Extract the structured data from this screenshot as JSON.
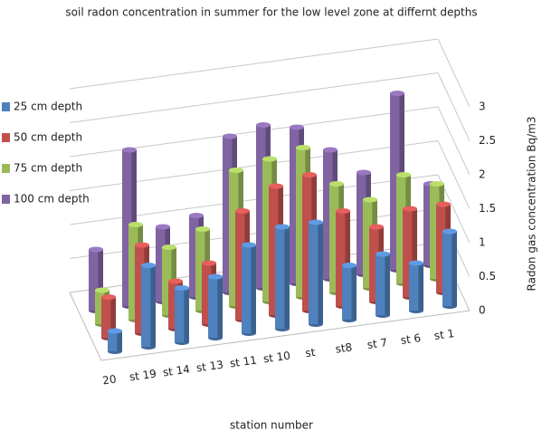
{
  "chart_data": {
    "type": "bar3d",
    "title": "soil radon concentration in summer for the low level zone at differnt depths",
    "x_label": "station number",
    "y_label": "Radon gas concentration Bq/m3",
    "categories": [
      "20",
      "st 19",
      "st 14",
      "st 13",
      "st 11",
      "st 10",
      "st",
      "st8",
      "st 7",
      "st 6",
      "st 1"
    ],
    "series": [
      {
        "name": "25 cm depth",
        "color": "#4f81bd",
        "values": [
          0.3,
          1.2,
          0.8,
          0.9,
          1.3,
          1.5,
          1.5,
          0.8,
          0.9,
          0.7,
          1.1
        ]
      },
      {
        "name": "50 cm depth",
        "color": "#c0504d",
        "values": [
          0.6,
          1.3,
          0.7,
          0.9,
          1.6,
          1.9,
          2.0,
          1.4,
          1.1,
          1.3,
          1.3
        ]
      },
      {
        "name": "75 cm depth",
        "color": "#9bbb59",
        "values": [
          0.5,
          1.4,
          1.0,
          1.2,
          2.0,
          2.1,
          2.2,
          1.6,
          1.3,
          1.6,
          1.4
        ]
      },
      {
        "name": "100 cm depth",
        "color": "#8064a2",
        "values": [
          0.9,
          2.3,
          1.1,
          1.2,
          2.3,
          2.4,
          2.3,
          1.9,
          1.5,
          2.6,
          1.2
        ]
      }
    ],
    "ylim": [
      0,
      3
    ],
    "yticks": [
      0,
      0.5,
      1,
      1.5,
      2,
      2.5,
      3
    ],
    "grid": true
  }
}
